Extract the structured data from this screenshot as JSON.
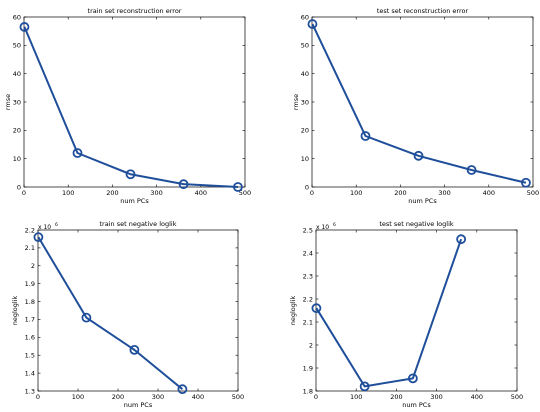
{
  "chart_data": [
    {
      "type": "line",
      "title": "train set reconstruction error",
      "xlabel": "num PCs",
      "ylabel": "rmse",
      "xlim": [
        0,
        500
      ],
      "ylim": [
        0,
        60
      ],
      "xticks": [
        0,
        100,
        200,
        300,
        400,
        500
      ],
      "yticks": [
        0,
        10,
        20,
        30,
        40,
        50,
        60
      ],
      "ytick_labels": [
        "0",
        "10",
        "20",
        "30",
        "40",
        "50",
        "60"
      ],
      "exponent_label": "",
      "x": [
        1,
        121,
        241,
        361,
        484
      ],
      "values": [
        56.5,
        12,
        4.5,
        1,
        0
      ]
    },
    {
      "type": "line",
      "title": "test set reconstruction error",
      "xlabel": "num PCs",
      "ylabel": "rmse",
      "xlim": [
        0,
        500
      ],
      "ylim": [
        0,
        60
      ],
      "xticks": [
        0,
        100,
        200,
        300,
        400,
        500
      ],
      "yticks": [
        0,
        10,
        20,
        30,
        40,
        50,
        60
      ],
      "ytick_labels": [
        "0",
        "10",
        "20",
        "30",
        "40",
        "50",
        "60"
      ],
      "exponent_label": "",
      "x": [
        1,
        121,
        241,
        361,
        484
      ],
      "values": [
        57.5,
        18,
        11,
        6,
        1.5
      ]
    },
    {
      "type": "line",
      "title": "train set negative loglik",
      "xlabel": "num PCs",
      "ylabel": "negloglik",
      "xlim": [
        0,
        500
      ],
      "ylim": [
        1.3,
        2.2
      ],
      "xticks": [
        0,
        100,
        200,
        300,
        400,
        500
      ],
      "yticks": [
        1.3,
        1.4,
        1.5,
        1.6,
        1.7,
        1.8,
        1.9,
        2,
        2.1,
        2.2
      ],
      "ytick_labels": [
        "1.3",
        "1.4",
        "1.5",
        "1.6",
        "1.7",
        "1.8",
        "1.9",
        "2",
        "2.1",
        "2.2"
      ],
      "exponent_label": "x 10",
      "exponent_power": "6",
      "x": [
        1,
        121,
        241,
        361
      ],
      "values": [
        2.16,
        1.71,
        1.53,
        1.31
      ]
    },
    {
      "type": "line",
      "title": "test set negative loglik",
      "xlabel": "num PCs",
      "ylabel": "negloglik",
      "xlim": [
        0,
        500
      ],
      "ylim": [
        1.8,
        2.5
      ],
      "xticks": [
        0,
        100,
        200,
        300,
        400,
        500
      ],
      "yticks": [
        1.8,
        1.9,
        2,
        2.1,
        2.2,
        2.3,
        2.4,
        2.5
      ],
      "ytick_labels": [
        "1.8",
        "1.9",
        "2",
        "2.1",
        "2.2",
        "2.3",
        "2.4",
        "2.5"
      ],
      "exponent_label": "x 10",
      "exponent_power": "6",
      "x": [
        1,
        121,
        241,
        361
      ],
      "values": [
        2.16,
        1.82,
        1.855,
        2.46
      ]
    }
  ],
  "colors": {
    "series": "#1f4e9a",
    "axes": "#000000"
  }
}
